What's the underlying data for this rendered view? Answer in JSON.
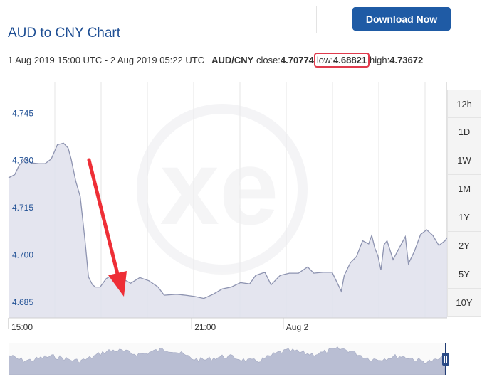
{
  "header": {
    "title": "AUD to CNY Chart",
    "download_label": "Download Now"
  },
  "summary": {
    "range": "1 Aug 2019 15:00 UTC - 2 Aug 2019 05:22 UTC",
    "pair": "AUD/CNY",
    "close_label": "close:",
    "close_value": "4.70774",
    "low_label": "low:",
    "low_value": "4.68821",
    "high_label": "high:",
    "high_value": "4.73672"
  },
  "range_buttons": [
    "12h",
    "1D",
    "1W",
    "1M",
    "1Y",
    "2Y",
    "5Y",
    "10Y"
  ],
  "colors": {
    "brand": "#1f5ba5",
    "line": "#8d93b0",
    "area": "#dfe1ec",
    "arrow": "#ee2e36",
    "highlight_box": "#e03a4c"
  },
  "icons": {
    "watermark": "xe-logo",
    "navigator_handle": "drag-handle-icon",
    "annotation": "red-arrow-icon"
  },
  "chart_data": {
    "type": "area",
    "title": "AUD to CNY Chart",
    "ylim": [
      4.68,
      4.755
    ],
    "yticks": [
      4.745,
      4.73,
      4.715,
      4.7,
      4.685
    ],
    "ytick_labels": [
      "4.745",
      "4.730",
      "4.715",
      "4.700",
      "4.685"
    ],
    "xticks": [
      {
        "label": "15:00",
        "x": 0
      },
      {
        "label": "21:00",
        "x": 6
      },
      {
        "label": "Aug 2",
        "x": 9
      }
    ],
    "xlim": [
      0,
      14.37
    ],
    "grid": true,
    "series": [
      {
        "x": [
          0,
          0.2,
          0.35,
          0.55,
          0.75,
          1,
          1.2,
          1.4,
          1.6,
          1.8,
          1.95,
          2.05,
          2.2,
          2.35,
          2.5,
          2.62,
          2.75,
          2.85,
          3.0,
          3.2,
          3.4,
          3.6,
          4.0,
          4.3,
          4.6,
          4.9,
          5.1,
          5.5,
          5.8,
          6.1,
          6.4,
          6.7,
          7.0,
          7.3,
          7.6,
          7.9,
          8.1,
          8.4,
          8.6,
          8.9,
          9.2,
          9.5,
          9.8,
          10.0,
          10.3,
          10.6,
          10.9,
          11.0,
          11.2,
          11.4,
          11.6,
          11.8,
          11.9,
          12.0,
          12.1,
          12.2,
          12.3,
          12.4,
          12.6,
          12.8,
          13.0,
          13.1,
          13.3,
          13.5,
          13.7,
          13.9,
          14.1,
          14.3,
          14.37
        ],
        "y": [
          4.7245,
          4.7255,
          4.7285,
          4.7305,
          4.7292,
          4.729,
          4.729,
          4.7305,
          4.735,
          4.7355,
          4.734,
          4.7305,
          4.7235,
          4.7185,
          4.705,
          4.693,
          4.6905,
          4.6898,
          4.6898,
          4.6925,
          4.6935,
          4.6932,
          4.691,
          4.6928,
          4.6918,
          4.6898,
          4.6872,
          4.6875,
          4.6872,
          4.6868,
          4.6862,
          4.6875,
          4.6892,
          4.6898,
          4.6912,
          4.6908,
          4.6935,
          4.6945,
          4.6905,
          4.6935,
          4.6942,
          4.6942,
          4.6962,
          4.6942,
          4.6945,
          4.6945,
          4.6885,
          4.6935,
          4.6975,
          4.6995,
          4.7045,
          4.7035,
          4.7062,
          4.7022,
          4.6998,
          4.6952,
          4.7032,
          4.7045,
          4.6985,
          4.7022,
          4.7058,
          4.6972,
          4.7012,
          4.7065,
          4.708,
          4.7062,
          4.703,
          4.7045,
          4.7055
        ]
      }
    ]
  }
}
